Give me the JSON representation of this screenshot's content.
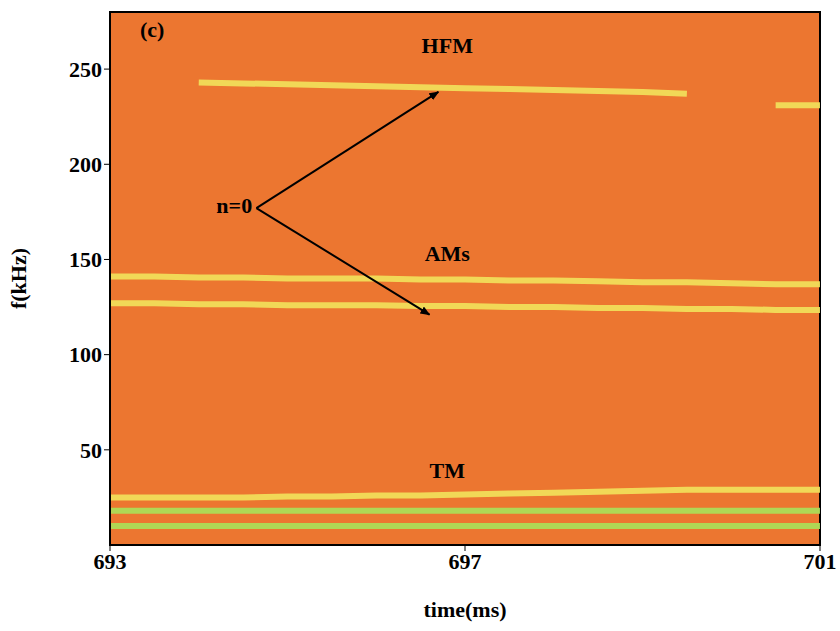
{
  "chart_data": {
    "type": "spectrogram",
    "panel": "(c)",
    "x_label": "time(ms)",
    "y_label": "f(kHz)",
    "xlim": [
      693,
      701
    ],
    "xticks": [
      693,
      697,
      701
    ],
    "ylim": [
      0,
      280
    ],
    "yticks": [
      50,
      100,
      150,
      200,
      250
    ],
    "x": [
      693,
      693.5,
      694,
      694.5,
      695,
      695.5,
      696,
      696.5,
      697,
      697.5,
      698,
      698.5,
      699,
      699.5,
      700,
      700.5,
      701
    ],
    "series": [
      {
        "color": "#f2e35c",
        "values": [
          null,
          null,
          243,
          242.5,
          242,
          241.5,
          241,
          240.5,
          240,
          239.5,
          239,
          238.5,
          238,
          237,
          null,
          null,
          null
        ]
      },
      {
        "color": "#f2e35c",
        "values": [
          null,
          null,
          null,
          null,
          null,
          null,
          null,
          null,
          null,
          null,
          null,
          null,
          null,
          null,
          null,
          231,
          231
        ]
      },
      {
        "color": "#f2e35c",
        "values": [
          141,
          141,
          140.5,
          140.5,
          140,
          140,
          140,
          139.5,
          139.5,
          139,
          139,
          138.5,
          138,
          138,
          137.5,
          137,
          137
        ]
      },
      {
        "color": "#f2e35c",
        "values": [
          127,
          127,
          126.5,
          126.5,
          126,
          126,
          126,
          125.5,
          125.5,
          125,
          125,
          124.5,
          124.5,
          124,
          124,
          123.5,
          123.5
        ]
      },
      {
        "color": "#f2e35c",
        "values": [
          25,
          25,
          25,
          25,
          25.5,
          25.5,
          26,
          26,
          26.5,
          27,
          27.5,
          28,
          28.5,
          29,
          29,
          29,
          29
        ]
      },
      {
        "color": "#a8e25a",
        "values": [
          18,
          18,
          18,
          18,
          18,
          18,
          18,
          18,
          18,
          18,
          18,
          18,
          18,
          18,
          18,
          18,
          18
        ]
      },
      {
        "color": "#a8e25a",
        "values": [
          10,
          10,
          10,
          10,
          10,
          10,
          10,
          10,
          10,
          10,
          10,
          10,
          10,
          10,
          10,
          10,
          10
        ]
      }
    ],
    "annotations": [
      {
        "text": "HFM",
        "x": 696.8,
        "y": 261
      },
      {
        "text": "AMs",
        "x": 696.8,
        "y": 152
      },
      {
        "text": "TM",
        "x": 696.8,
        "y": 38
      },
      {
        "text": "n=0",
        "x": 694.4,
        "y": 177,
        "arrows": [
          {
            "x": 696.7,
            "y": 238
          },
          {
            "x": 696.6,
            "y": 121
          }
        ]
      }
    ]
  }
}
